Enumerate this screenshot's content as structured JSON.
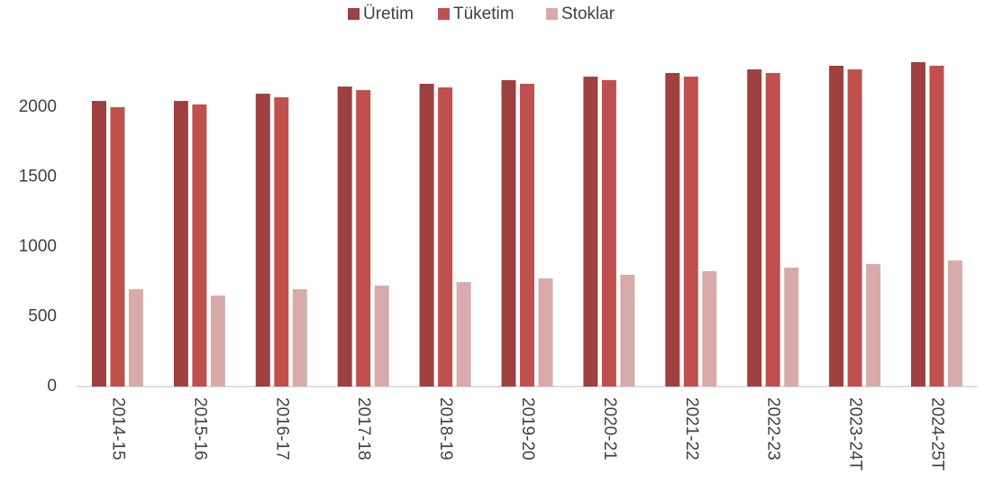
{
  "chart_data": {
    "type": "bar",
    "categories": [
      "2014-15",
      "2015-16",
      "2016-17",
      "2017-18",
      "2018-19",
      "2019-20",
      "2020-21",
      "2021-22",
      "2022-23",
      "2023-24T",
      "2024-25T"
    ],
    "series": [
      {
        "name": "Üretim",
        "color": "#9e4040",
        "values": [
          2045,
          2045,
          2097,
          2148,
          2168,
          2194,
          2219,
          2245,
          2271,
          2297,
          2323
        ]
      },
      {
        "name": "Tüketim",
        "color": "#c0504d",
        "values": [
          2000,
          2020,
          2071,
          2123,
          2142,
          2168,
          2194,
          2219,
          2245,
          2271,
          2297
        ]
      },
      {
        "name": "Stoklar",
        "color": "#d9aaaa",
        "values": [
          697,
          652,
          697,
          723,
          748,
          774,
          800,
          826,
          852,
          877,
          903
        ]
      }
    ],
    "ylim": [
      0,
      2500
    ],
    "yticks": [
      0,
      500,
      1000,
      1500,
      2000
    ],
    "grid": false,
    "legend": "top"
  }
}
